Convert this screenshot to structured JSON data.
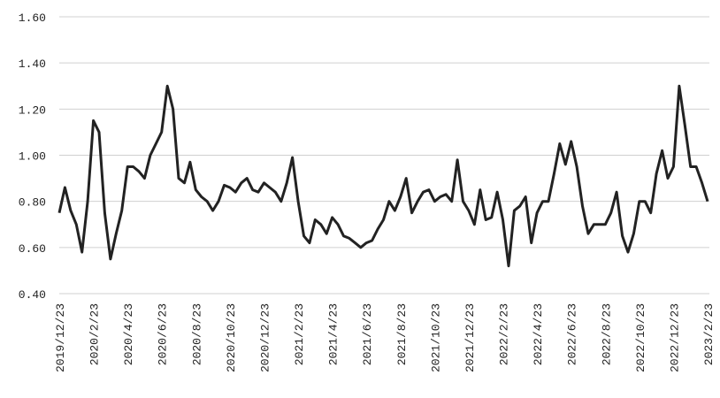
{
  "chart_data": {
    "type": "line",
    "categories": [
      "2019/12/23",
      null,
      null,
      null,
      null,
      null,
      "2020/2/23",
      null,
      null,
      null,
      null,
      null,
      "2020/4/23",
      null,
      null,
      null,
      null,
      null,
      "2020/6/23",
      null,
      null,
      null,
      null,
      null,
      "2020/8/23",
      null,
      null,
      null,
      null,
      null,
      "2020/10/23",
      null,
      null,
      null,
      null,
      null,
      "2020/12/23",
      null,
      null,
      null,
      null,
      null,
      "2021/2/23",
      null,
      null,
      null,
      null,
      null,
      "2021/4/23",
      null,
      null,
      null,
      null,
      null,
      "2021/6/23",
      null,
      null,
      null,
      null,
      null,
      "2021/8/23",
      null,
      null,
      null,
      null,
      null,
      "2021/10/23",
      null,
      null,
      null,
      null,
      null,
      "2021/12/23",
      null,
      null,
      null,
      null,
      null,
      "2022/2/23",
      null,
      null,
      null,
      null,
      null,
      "2022/4/23",
      null,
      null,
      null,
      null,
      null,
      "2022/6/23",
      null,
      null,
      null,
      null,
      null,
      "2022/8/23",
      null,
      null,
      null,
      null,
      null,
      "2022/10/23",
      null,
      null,
      null,
      null,
      null,
      "2022/12/23",
      null,
      null,
      null,
      null,
      null,
      "2023/2/23"
    ],
    "series": [
      {
        "color": "#222222",
        "values": [
          0.75,
          0.86,
          0.76,
          0.7,
          0.58,
          0.8,
          1.15,
          1.1,
          0.75,
          0.55,
          0.66,
          0.76,
          0.95,
          0.95,
          0.93,
          0.9,
          1.0,
          1.05,
          1.1,
          1.3,
          1.2,
          0.9,
          0.88,
          0.97,
          0.85,
          0.82,
          0.8,
          0.76,
          0.8,
          0.87,
          0.86,
          0.84,
          0.88,
          0.9,
          0.85,
          0.84,
          0.88,
          0.86,
          0.84,
          0.8,
          0.88,
          0.99,
          0.8,
          0.65,
          0.62,
          0.72,
          0.7,
          0.66,
          0.73,
          0.7,
          0.65,
          0.64,
          0.62,
          0.6,
          0.62,
          0.63,
          0.68,
          0.72,
          0.8,
          0.76,
          0.82,
          0.9,
          0.75,
          0.8,
          0.84,
          0.85,
          0.8,
          0.82,
          0.83,
          0.8,
          0.98,
          0.8,
          0.76,
          0.7,
          0.85,
          0.72,
          0.73,
          0.84,
          0.72,
          0.52,
          0.76,
          0.78,
          0.82,
          0.62,
          0.75,
          0.8,
          0.8,
          0.92,
          1.05,
          0.96,
          1.06,
          0.95,
          0.78,
          0.66,
          0.7,
          0.7,
          0.7,
          0.75,
          0.84,
          0.65,
          0.58,
          0.66,
          0.8,
          0.8,
          0.75,
          0.92,
          1.02,
          0.9,
          0.95,
          1.3,
          1.13,
          0.95,
          0.95,
          0.88,
          0.8
        ]
      }
    ],
    "ylim": [
      0.4,
      1.6
    ],
    "yticks": [
      {
        "value": 0.4,
        "label": "0.40"
      },
      {
        "value": 0.6,
        "label": "0.60"
      },
      {
        "value": 0.8,
        "label": "0.80"
      },
      {
        "value": 1.0,
        "label": "1.00"
      },
      {
        "value": 1.2,
        "label": "1.20"
      },
      {
        "value": 1.4,
        "label": "1.40"
      },
      {
        "value": 1.6,
        "label": "1.60"
      }
    ],
    "grid": true
  }
}
